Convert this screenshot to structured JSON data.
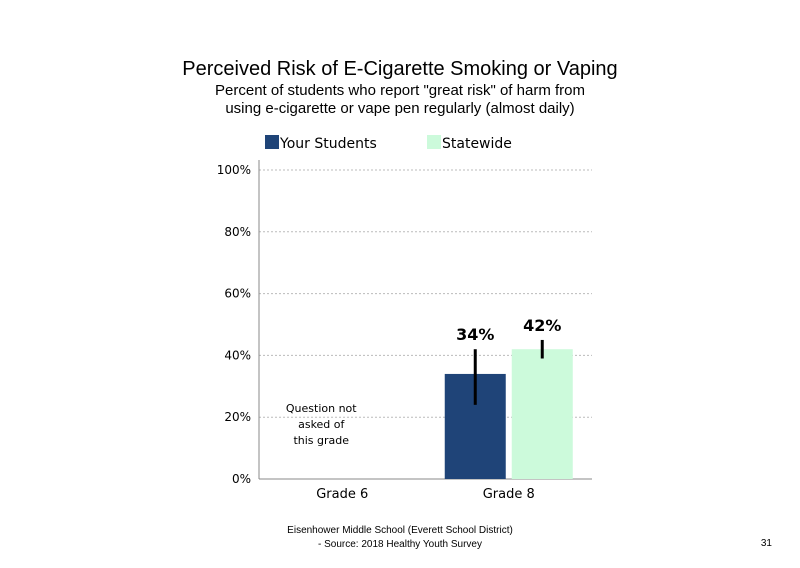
{
  "header": {
    "title": "Perceived Risk of E-Cigarette Smoking or Vaping",
    "subtitle_line1": "Percent of students who report \"great risk\" of harm from",
    "subtitle_line2": "using e-cigarette or vape pen regularly (almost daily)"
  },
  "footer": {
    "line1": "Eisenhower Middle School (Everett School District)",
    "line2": "- Source: 2018 Healthy Youth Survey",
    "page_number": "31"
  },
  "chart_data": {
    "type": "bar",
    "title": "Perceived Risk of E-Cigarette Smoking or Vaping",
    "categories": [
      "Grade 6",
      "Grade 8"
    ],
    "series": [
      {
        "name": "Your Students",
        "color": "#1f4478",
        "values": [
          null,
          34
        ],
        "labels": [
          "",
          "34%"
        ],
        "error": [
          null,
          [
            24,
            42
          ]
        ]
      },
      {
        "name": "Statewide",
        "color": "#ccfadb",
        "values": [
          null,
          42
        ],
        "labels": [
          "",
          "42%"
        ],
        "error": [
          null,
          [
            39,
            45
          ]
        ]
      }
    ],
    "ylim": [
      0,
      100
    ],
    "yticks": [
      "0%",
      "20%",
      "40%",
      "60%",
      "80%",
      "100%"
    ],
    "grid": true,
    "legend_position": "top",
    "annotations": [
      {
        "category": "Grade 6",
        "lines": [
          "Question not",
          "asked of",
          "this grade"
        ]
      }
    ]
  }
}
